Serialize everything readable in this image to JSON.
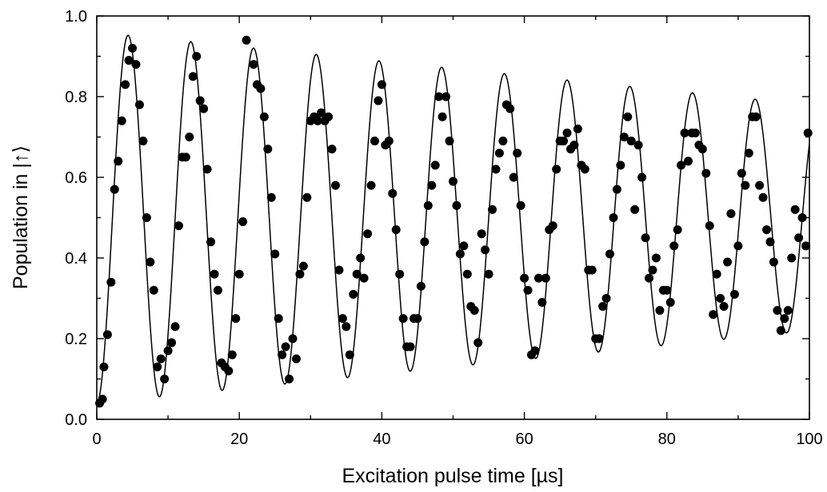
{
  "chart_data": {
    "type": "scatter",
    "title": "",
    "xlabel": "Excitation pulse time [µs]",
    "ylabel": "Population in |↑⟩",
    "xlim": [
      0,
      100
    ],
    "ylim": [
      0.0,
      1.0
    ],
    "x_ticks": [
      "0",
      "20",
      "40",
      "60",
      "80",
      "100"
    ],
    "y_ticks": [
      "0.0",
      "0.2",
      "0.4",
      "0.6",
      "0.8",
      "1.0"
    ],
    "grid": false,
    "legend": "none",
    "colors": {
      "points": "#000000",
      "fit": "#000000",
      "axes": "#000000"
    },
    "fit_model": {
      "type": "damped-sine",
      "offset": 0.5,
      "amplitude_start": 0.46,
      "amplitude_end": 0.28,
      "period": 8.8,
      "phase_deg": -90
    },
    "points": [
      [
        0.4,
        0.04
      ],
      [
        0.8,
        0.05
      ],
      [
        1.0,
        0.13
      ],
      [
        1.5,
        0.21
      ],
      [
        2.0,
        0.34
      ],
      [
        2.5,
        0.57
      ],
      [
        3.0,
        0.64
      ],
      [
        3.5,
        0.74
      ],
      [
        4.0,
        0.83
      ],
      [
        4.5,
        0.89
      ],
      [
        5.0,
        0.92
      ],
      [
        5.5,
        0.88
      ],
      [
        6.0,
        0.78
      ],
      [
        6.5,
        0.69
      ],
      [
        7.0,
        0.5
      ],
      [
        7.5,
        0.39
      ],
      [
        8.0,
        0.32
      ],
      [
        8.5,
        0.13
      ],
      [
        9.0,
        0.15
      ],
      [
        9.5,
        0.1
      ],
      [
        10.0,
        0.17
      ],
      [
        10.5,
        0.19
      ],
      [
        11.0,
        0.23
      ],
      [
        11.5,
        0.48
      ],
      [
        12.0,
        0.65
      ],
      [
        12.5,
        0.65
      ],
      [
        13.0,
        0.7
      ],
      [
        13.5,
        0.85
      ],
      [
        14.0,
        0.9
      ],
      [
        14.5,
        0.79
      ],
      [
        15.0,
        0.77
      ],
      [
        15.5,
        0.62
      ],
      [
        16.0,
        0.44
      ],
      [
        16.5,
        0.36
      ],
      [
        17.0,
        0.32
      ],
      [
        17.5,
        0.14
      ],
      [
        18.0,
        0.13
      ],
      [
        18.5,
        0.12
      ],
      [
        19.0,
        0.16
      ],
      [
        19.5,
        0.25
      ],
      [
        20.0,
        0.36
      ],
      [
        20.5,
        0.49
      ],
      [
        21.0,
        0.94
      ],
      [
        22.0,
        0.88
      ],
      [
        22.5,
        0.83
      ],
      [
        23.0,
        0.82
      ],
      [
        23.5,
        0.75
      ],
      [
        24.0,
        0.67
      ],
      [
        24.5,
        0.55
      ],
      [
        25.0,
        0.41
      ],
      [
        25.5,
        0.25
      ],
      [
        26.0,
        0.16
      ],
      [
        26.5,
        0.18
      ],
      [
        27.0,
        0.1
      ],
      [
        27.5,
        0.2
      ],
      [
        28.0,
        0.15
      ],
      [
        28.5,
        0.36
      ],
      [
        29.0,
        0.38
      ],
      [
        29.5,
        0.55
      ],
      [
        30.0,
        0.74
      ],
      [
        30.5,
        0.75
      ],
      [
        31.0,
        0.74
      ],
      [
        31.5,
        0.76
      ],
      [
        32.0,
        0.74
      ],
      [
        32.5,
        0.75
      ],
      [
        33.0,
        0.67
      ],
      [
        33.5,
        0.58
      ],
      [
        34.0,
        0.37
      ],
      [
        34.5,
        0.25
      ],
      [
        35.0,
        0.23
      ],
      [
        35.5,
        0.16
      ],
      [
        36.0,
        0.31
      ],
      [
        36.5,
        0.36
      ],
      [
        37.0,
        0.4
      ],
      [
        37.5,
        0.35
      ],
      [
        38.0,
        0.46
      ],
      [
        38.5,
        0.58
      ],
      [
        39.0,
        0.69
      ],
      [
        39.5,
        0.79
      ],
      [
        40.0,
        0.83
      ],
      [
        40.5,
        0.68
      ],
      [
        41.0,
        0.69
      ],
      [
        41.5,
        0.56
      ],
      [
        42.0,
        0.47
      ],
      [
        42.5,
        0.36
      ],
      [
        43.0,
        0.25
      ],
      [
        43.5,
        0.18
      ],
      [
        44.0,
        0.18
      ],
      [
        44.5,
        0.25
      ],
      [
        45.0,
        0.25
      ],
      [
        45.5,
        0.33
      ],
      [
        46.0,
        0.44
      ],
      [
        46.5,
        0.53
      ],
      [
        47.0,
        0.58
      ],
      [
        47.5,
        0.63
      ],
      [
        48.0,
        0.8
      ],
      [
        48.5,
        0.75
      ],
      [
        49.0,
        0.8
      ],
      [
        49.5,
        0.69
      ],
      [
        50.0,
        0.59
      ],
      [
        50.5,
        0.53
      ],
      [
        51.0,
        0.41
      ],
      [
        51.5,
        0.43
      ],
      [
        52.0,
        0.36
      ],
      [
        52.5,
        0.28
      ],
      [
        53.0,
        0.27
      ],
      [
        53.5,
        0.19
      ],
      [
        54.0,
        0.46
      ],
      [
        54.5,
        0.42
      ],
      [
        55.0,
        0.36
      ],
      [
        55.5,
        0.52
      ],
      [
        56.0,
        0.62
      ],
      [
        56.5,
        0.66
      ],
      [
        57.0,
        0.69
      ],
      [
        57.5,
        0.78
      ],
      [
        58.0,
        0.77
      ],
      [
        58.5,
        0.6
      ],
      [
        59.0,
        0.66
      ],
      [
        59.5,
        0.53
      ],
      [
        60.0,
        0.35
      ],
      [
        60.5,
        0.32
      ],
      [
        61.0,
        0.16
      ],
      [
        61.5,
        0.17
      ],
      [
        62.0,
        0.35
      ],
      [
        62.5,
        0.29
      ],
      [
        63.0,
        0.35
      ],
      [
        63.5,
        0.47
      ],
      [
        64.0,
        0.48
      ],
      [
        64.5,
        0.62
      ],
      [
        65.0,
        0.69
      ],
      [
        65.5,
        0.69
      ],
      [
        66.0,
        0.71
      ],
      [
        66.5,
        0.67
      ],
      [
        67.0,
        0.68
      ],
      [
        67.5,
        0.72
      ],
      [
        68.0,
        0.63
      ],
      [
        68.5,
        0.62
      ],
      [
        69.0,
        0.37
      ],
      [
        69.5,
        0.37
      ],
      [
        70.0,
        0.2
      ],
      [
        70.5,
        0.2
      ],
      [
        71.0,
        0.28
      ],
      [
        71.5,
        0.3
      ],
      [
        72.0,
        0.41
      ],
      [
        72.5,
        0.5
      ],
      [
        73.0,
        0.57
      ],
      [
        73.5,
        0.63
      ],
      [
        74.0,
        0.7
      ],
      [
        74.5,
        0.75
      ],
      [
        75.0,
        0.69
      ],
      [
        75.5,
        0.52
      ],
      [
        76.0,
        0.68
      ],
      [
        76.5,
        0.6
      ],
      [
        77.0,
        0.45
      ],
      [
        77.5,
        0.35
      ],
      [
        78.0,
        0.37
      ],
      [
        78.5,
        0.4
      ],
      [
        79.0,
        0.27
      ],
      [
        79.5,
        0.32
      ],
      [
        80.0,
        0.32
      ],
      [
        80.5,
        0.29
      ],
      [
        81.0,
        0.43
      ],
      [
        81.5,
        0.47
      ],
      [
        82.0,
        0.63
      ],
      [
        82.5,
        0.71
      ],
      [
        83.0,
        0.64
      ],
      [
        83.5,
        0.71
      ],
      [
        84.0,
        0.71
      ],
      [
        84.5,
        0.68
      ],
      [
        85.0,
        0.67
      ],
      [
        85.5,
        0.61
      ],
      [
        86.0,
        0.48
      ],
      [
        86.5,
        0.26
      ],
      [
        87.0,
        0.36
      ],
      [
        87.5,
        0.3
      ],
      [
        88.0,
        0.28
      ],
      [
        88.5,
        0.39
      ],
      [
        89.0,
        0.51
      ],
      [
        89.5,
        0.31
      ],
      [
        90.0,
        0.43
      ],
      [
        90.5,
        0.61
      ],
      [
        91.0,
        0.58
      ],
      [
        91.5,
        0.66
      ],
      [
        92.0,
        0.75
      ],
      [
        92.5,
        0.75
      ],
      [
        93.0,
        0.58
      ],
      [
        93.5,
        0.55
      ],
      [
        94.0,
        0.47
      ],
      [
        94.5,
        0.44
      ],
      [
        95.0,
        0.39
      ],
      [
        95.5,
        0.27
      ],
      [
        96.0,
        0.22
      ],
      [
        96.5,
        0.25
      ],
      [
        97.0,
        0.27
      ],
      [
        97.5,
        0.4
      ],
      [
        98.0,
        0.52
      ],
      [
        98.5,
        0.45
      ],
      [
        99.0,
        0.5
      ],
      [
        99.5,
        0.43
      ],
      [
        99.8,
        0.71
      ]
    ]
  }
}
